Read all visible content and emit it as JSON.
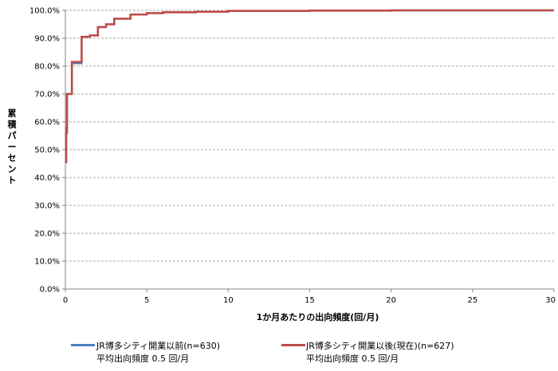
{
  "chart_data": {
    "type": "line",
    "xlabel": "1か月あたりの出向頻度(回/月)",
    "ylabel": "累積パーセント",
    "xlim": [
      0,
      30
    ],
    "ylim": [
      0,
      100
    ],
    "x_ticks": [
      "0",
      "5",
      "10",
      "15",
      "20",
      "25",
      "30"
    ],
    "y_ticks": [
      "0.0%",
      "10.0%",
      "20.0%",
      "30.0%",
      "40.0%",
      "50.0%",
      "60.0%",
      "70.0%",
      "80.0%",
      "90.0%",
      "100.0%"
    ],
    "grid": "horizontal dashed",
    "legend_position": "bottom",
    "series": [
      {
        "name": "JR博多シティ開業以前(n=630)",
        "note": "平均出向頻度  0.5 回/月",
        "color": "#4a7ebf",
        "step": true,
        "x": [
          0,
          0.05,
          0.1,
          0.25,
          0.4,
          0.6,
          1.0,
          1.5,
          2.0,
          2.5,
          3.0,
          4.0,
          5.0,
          6.0,
          8.0,
          10.0,
          15.0,
          20.0,
          30.0
        ],
        "y": [
          46,
          58,
          70,
          70,
          81,
          81,
          90.5,
          91,
          94,
          95,
          97,
          98.5,
          99,
          99.3,
          99.5,
          99.8,
          99.9,
          100,
          100
        ]
      },
      {
        "name": "JR博多シティ開業以後(現在)(n=627)",
        "note": "平均出向頻度  0.5 回/月",
        "color": "#be4b48",
        "step": true,
        "x": [
          0,
          0.05,
          0.1,
          0.25,
          0.4,
          0.6,
          1.0,
          1.5,
          2.0,
          2.5,
          3.0,
          4.0,
          5.0,
          6.0,
          8.0,
          10.0,
          15.0,
          20.0,
          30.0
        ],
        "y": [
          45.5,
          56,
          70,
          70,
          81.5,
          81.5,
          90.5,
          91,
          94,
          95,
          97,
          98.5,
          99,
          99.3,
          99.5,
          99.8,
          99.9,
          100,
          100
        ]
      }
    ]
  }
}
